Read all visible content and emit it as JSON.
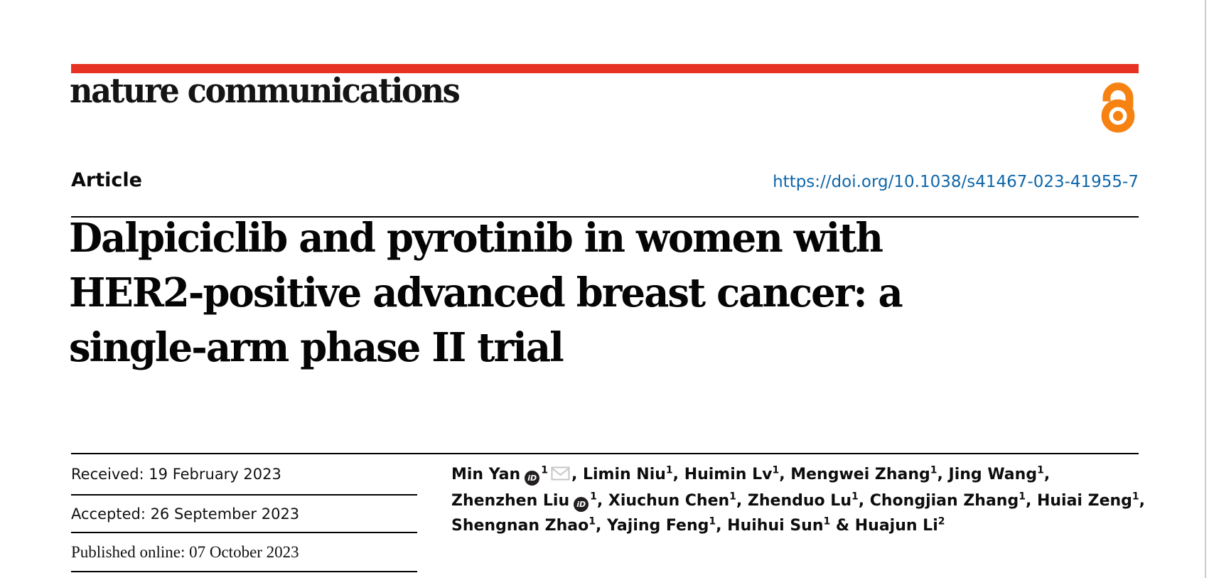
{
  "header": {
    "journal_name": "nature communications",
    "article_label": "Article",
    "doi": "https://doi.org/10.1038/s41467-023-41955-7"
  },
  "title_lines": [
    "Dalpiciclib and pyrotinib in women with",
    "HER2-positive advanced breast cancer: a",
    "single-arm phase II trial"
  ],
  "dates": {
    "received": "Received: 19 February 2023",
    "accepted": "Accepted: 26 September 2023",
    "published": "Published online: 07 October 2023"
  },
  "icons": {
    "orcid_label": "iD",
    "open_access": "open-access-padlock",
    "envelope": "email-envelope"
  },
  "colors": {
    "brand_red": "#e63323",
    "doi_blue": "#0f67a9",
    "open_access_orange": "#f68212"
  },
  "authors": {
    "lines": [
      {
        "segments": [
          {
            "text": "Min Yan"
          },
          {
            "icon": "orcid"
          },
          {
            "sup": "1"
          },
          {
            "icon": "envelope"
          },
          {
            "text": ", Limin Niu"
          },
          {
            "sup": "1"
          },
          {
            "text": ", Huimin Lv"
          },
          {
            "sup": "1"
          },
          {
            "text": ", Mengwei Zhang"
          },
          {
            "sup": "1"
          },
          {
            "text": ", Jing Wang"
          },
          {
            "sup": "1"
          },
          {
            "text": ","
          }
        ]
      },
      {
        "segments": [
          {
            "text": "Zhenzhen Liu"
          },
          {
            "icon": "orcid"
          },
          {
            "sup": "1"
          },
          {
            "text": ", Xiuchun Chen"
          },
          {
            "sup": "1"
          },
          {
            "text": ", Zhenduo Lu"
          },
          {
            "sup": "1"
          },
          {
            "text": ", Chongjian Zhang"
          },
          {
            "sup": "1"
          },
          {
            "text": ", Huiai Zeng"
          },
          {
            "sup": "1"
          },
          {
            "text": ","
          }
        ]
      },
      {
        "segments": [
          {
            "text": "Shengnan Zhao"
          },
          {
            "sup": "1"
          },
          {
            "text": ", Yajing Feng"
          },
          {
            "sup": "1"
          },
          {
            "text": ", Huihui Sun"
          },
          {
            "sup": "1"
          },
          {
            "text": " & Huajun Li"
          },
          {
            "sup": "2"
          }
        ]
      }
    ]
  }
}
